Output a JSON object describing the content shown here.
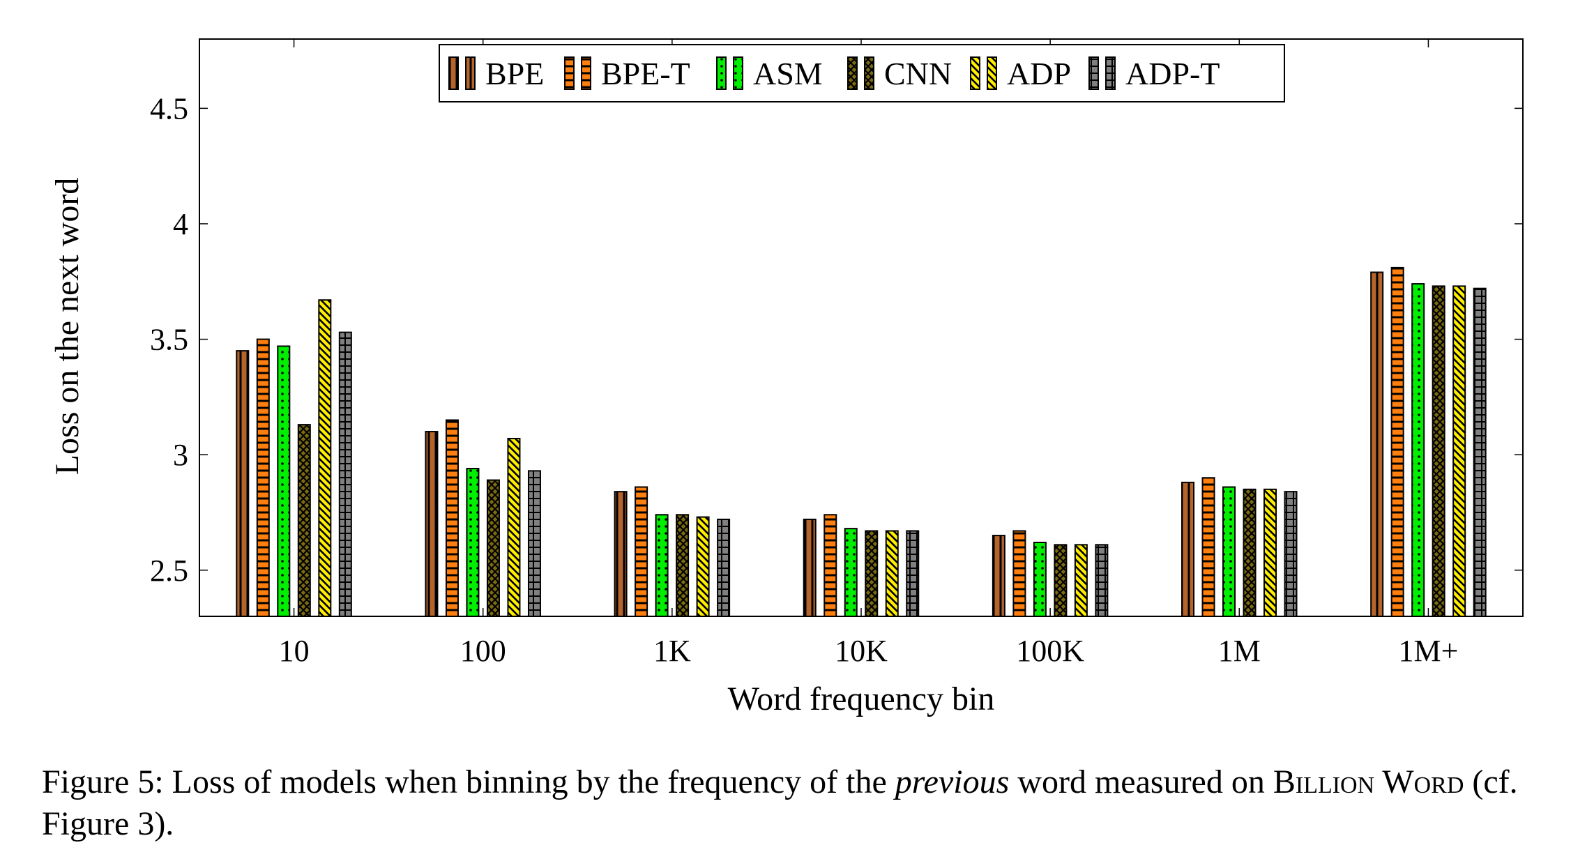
{
  "chart_data": {
    "type": "bar",
    "xlabel": "Word frequency bin",
    "ylabel": "Loss on the next word",
    "ylim": [
      2.3,
      4.8
    ],
    "yticks": [
      "2.5",
      "3",
      "3.5",
      "4",
      "4.5"
    ],
    "grid": false,
    "legend_position": "top-center",
    "categories": [
      "10",
      "100",
      "1K",
      "10K",
      "100K",
      "1M",
      "1M+"
    ],
    "series": [
      {
        "name": "BPE",
        "color": "#b5652b",
        "pattern": "vertical-lines",
        "values": [
          3.45,
          3.1,
          2.84,
          2.72,
          2.65,
          2.88,
          3.79
        ]
      },
      {
        "name": "BPE-T",
        "color": "#ff7f0e",
        "pattern": "horizontal-lines",
        "values": [
          3.5,
          3.15,
          2.86,
          2.74,
          2.67,
          2.9,
          3.81
        ]
      },
      {
        "name": "ASM",
        "color": "#00ee00",
        "pattern": "dots",
        "values": [
          3.47,
          2.94,
          2.74,
          2.68,
          2.62,
          2.86,
          3.74
        ]
      },
      {
        "name": "CNN",
        "color": "#7a6a10",
        "pattern": "crosshatch",
        "values": [
          3.13,
          2.89,
          2.74,
          2.67,
          2.61,
          2.85,
          3.73
        ]
      },
      {
        "name": "ADP",
        "color": "#ffee00",
        "pattern": "diagonal-lines",
        "values": [
          3.67,
          3.07,
          2.73,
          2.67,
          2.61,
          2.85,
          3.73
        ]
      },
      {
        "name": "ADP-T",
        "color": "#808080",
        "pattern": "grid",
        "values": [
          3.53,
          2.93,
          2.72,
          2.67,
          2.61,
          2.84,
          3.72
        ]
      }
    ]
  },
  "caption": {
    "prefix": "Figure 5: Loss of models when binning by the frequency of the ",
    "emphasis": "previous",
    "middle": " word measured on ",
    "smallcaps": "Billion Word",
    "suffix": " (cf. Figure 3)."
  }
}
